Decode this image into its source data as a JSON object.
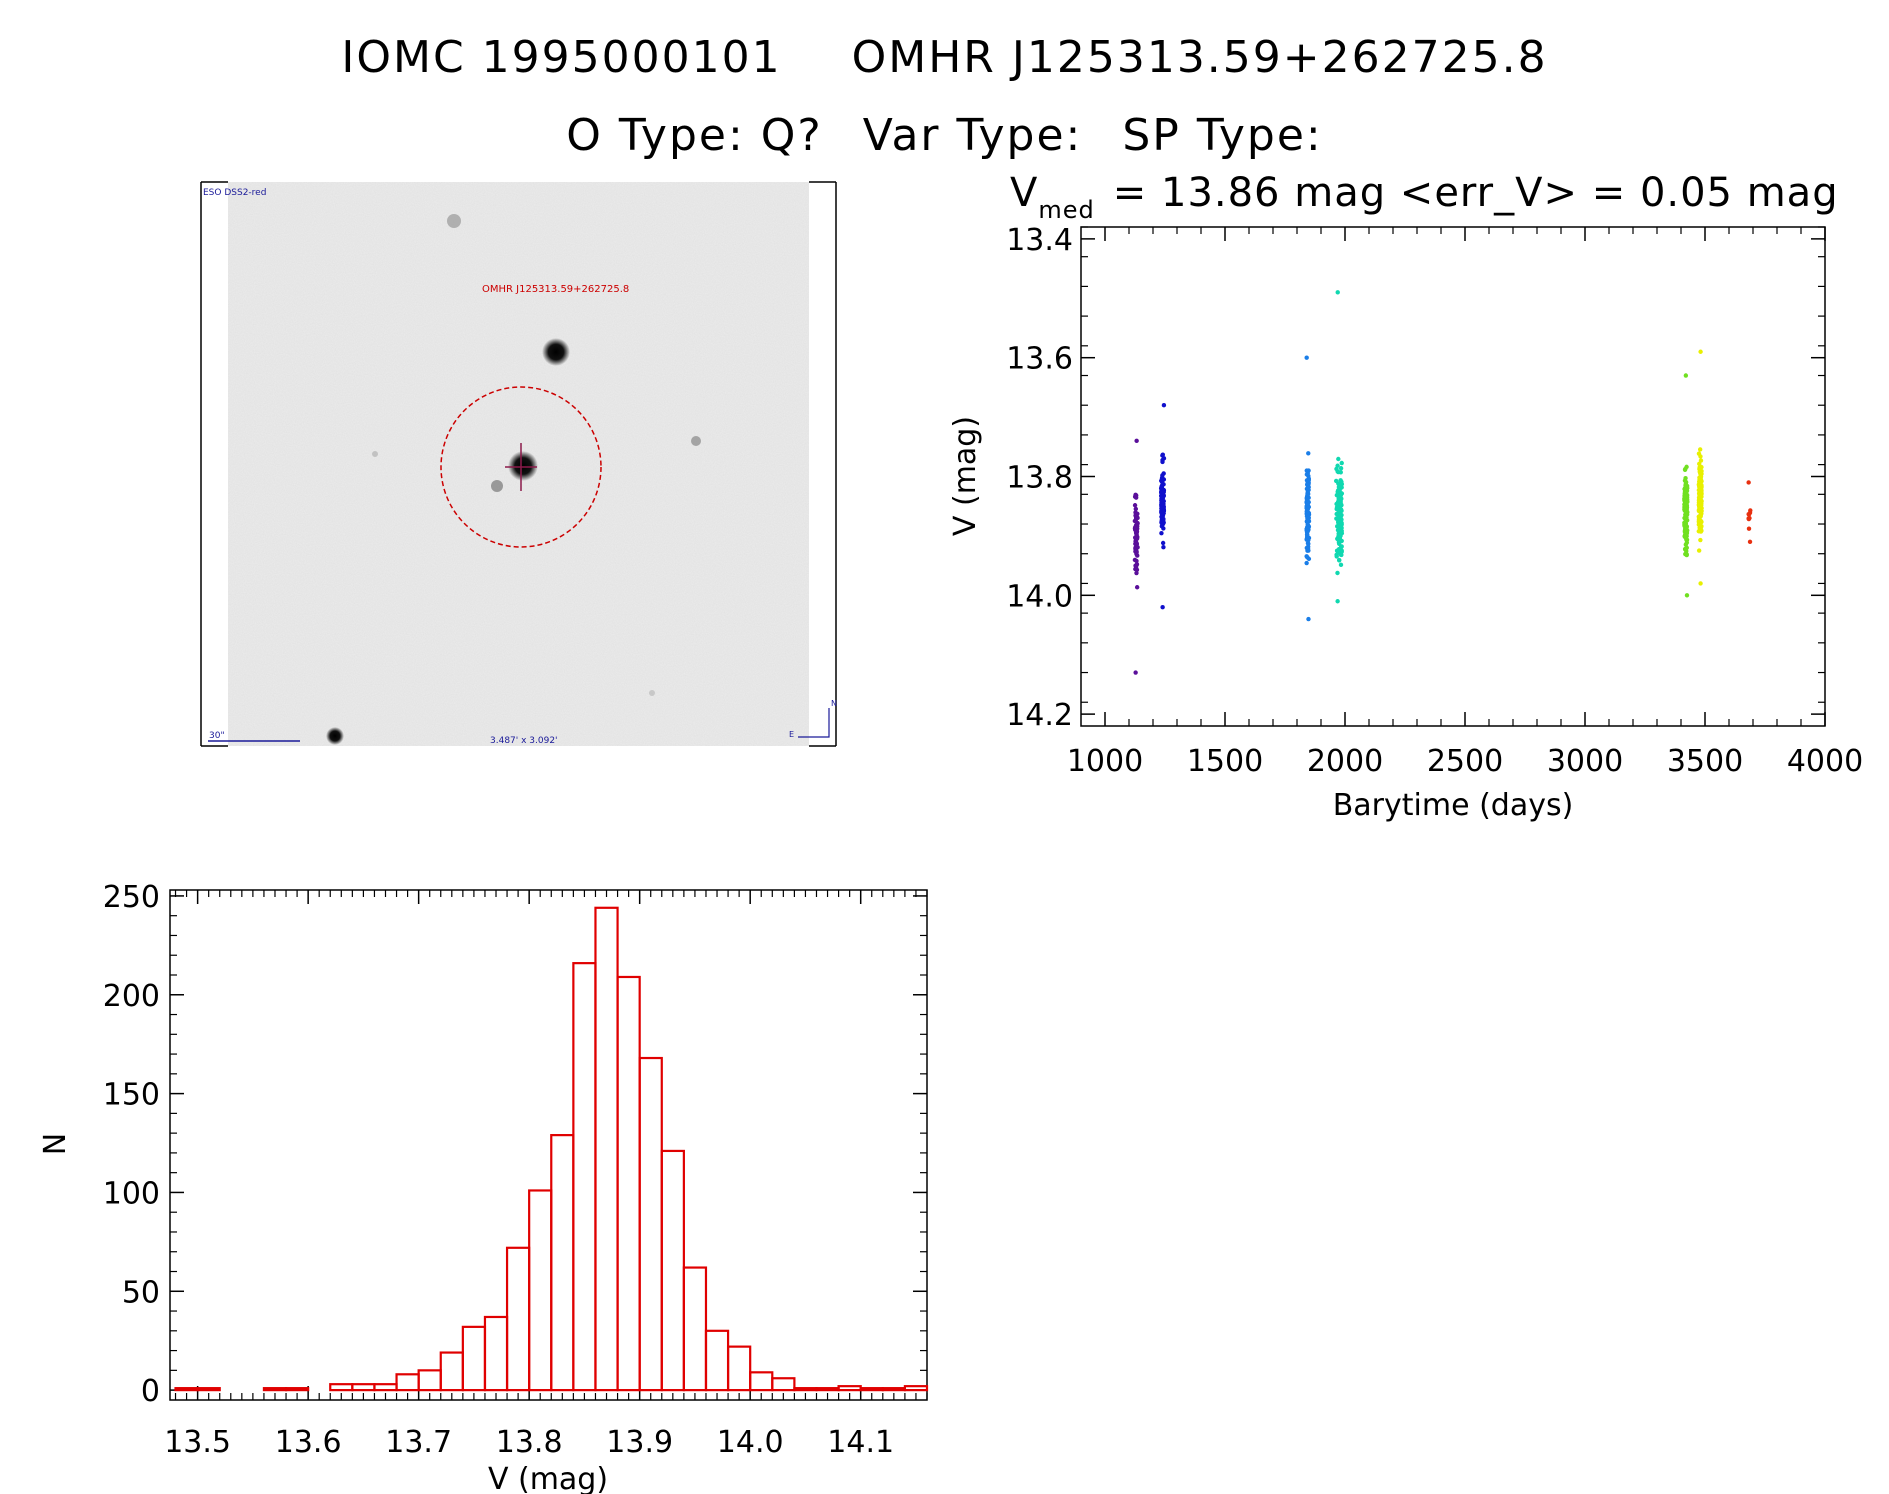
{
  "header": {
    "iomc_id": "IOMC 1995000101",
    "omhr_name": "OMHR J125313.59+262725.8",
    "otype": "O Type: Q?",
    "vartype": "Var Type:",
    "sptype": "SP Type:"
  },
  "colors": {
    "histogram": "#e00000",
    "aperture": "#cc0000",
    "overlay_blue": "#1a1a99"
  },
  "chart_data": [
    {
      "type": "image",
      "description_labels": {
        "survey": "ESO DSS2-red",
        "target": "OMHR J125313.59+262725.8",
        "scale": "30\"",
        "fov": "3.487' x 3.092'",
        "north": "N",
        "east": "E"
      }
    },
    {
      "type": "scatter",
      "title_prefix": "V",
      "title_sub": "med",
      "title_rest": "= 13.86 mag <err_V> = 0.05 mag",
      "xlabel": "Barytime (days)",
      "ylabel": "V (mag)",
      "xlim": [
        900,
        4000
      ],
      "ylim": [
        14.22,
        13.38
      ],
      "xticks": [
        1000,
        1500,
        2000,
        2500,
        3000,
        3500,
        4000
      ],
      "yticks": [
        13.4,
        13.6,
        13.8,
        14.0,
        14.2
      ],
      "clusters": [
        {
          "name": "c1",
          "x_center": 1130,
          "x_spread": 6,
          "y_center": 13.9,
          "y_min": 13.74,
          "y_max": 14.13,
          "n": 70,
          "color": "#5a0f9a"
        },
        {
          "name": "c2",
          "x_center": 1240,
          "x_spread": 6,
          "y_center": 13.84,
          "y_min": 13.68,
          "y_max": 14.02,
          "n": 110,
          "color": "#1010cc"
        },
        {
          "name": "c3",
          "x_center": 1845,
          "x_spread": 5,
          "y_center": 13.86,
          "y_min": 13.6,
          "y_max": 14.04,
          "n": 120,
          "color": "#1a7ee8"
        },
        {
          "name": "c4",
          "x_center": 1975,
          "x_spread": 12,
          "y_center": 13.86,
          "y_min": 13.49,
          "y_max": 14.01,
          "n": 130,
          "color": "#10d8b0"
        },
        {
          "name": "c5",
          "x_center": 3420,
          "x_spread": 6,
          "y_center": 13.86,
          "y_min": 13.63,
          "y_max": 14.0,
          "n": 130,
          "color": "#70e020"
        },
        {
          "name": "c6",
          "x_center": 3480,
          "x_spread": 6,
          "y_center": 13.84,
          "y_min": 13.59,
          "y_max": 13.98,
          "n": 130,
          "color": "#e8f000"
        },
        {
          "name": "c7",
          "x_center": 3685,
          "x_spread": 4,
          "y_center": 13.87,
          "y_min": 13.81,
          "y_max": 13.91,
          "n": 10,
          "color": "#e83010"
        }
      ]
    },
    {
      "type": "histogram",
      "xlabel": "V (mag)",
      "ylabel": "N",
      "xlim": [
        13.475,
        14.16
      ],
      "ylim": [
        -5,
        253
      ],
      "xticks": [
        13.5,
        13.6,
        13.7,
        13.8,
        13.9,
        14.0,
        14.1
      ],
      "yticks": [
        0,
        50,
        100,
        150,
        200,
        250
      ],
      "bin_width": 0.02,
      "bins": [
        {
          "x": 13.49,
          "n": 1
        },
        {
          "x": 13.51,
          "n": 1
        },
        {
          "x": 13.53,
          "n": 0
        },
        {
          "x": 13.55,
          "n": 0
        },
        {
          "x": 13.57,
          "n": 1
        },
        {
          "x": 13.59,
          "n": 1
        },
        {
          "x": 13.61,
          "n": 0
        },
        {
          "x": 13.63,
          "n": 3
        },
        {
          "x": 13.65,
          "n": 3
        },
        {
          "x": 13.67,
          "n": 3
        },
        {
          "x": 13.69,
          "n": 8
        },
        {
          "x": 13.71,
          "n": 10
        },
        {
          "x": 13.73,
          "n": 19
        },
        {
          "x": 13.75,
          "n": 32
        },
        {
          "x": 13.77,
          "n": 37
        },
        {
          "x": 13.79,
          "n": 72
        },
        {
          "x": 13.81,
          "n": 101
        },
        {
          "x": 13.83,
          "n": 129
        },
        {
          "x": 13.85,
          "n": 216
        },
        {
          "x": 13.87,
          "n": 244
        },
        {
          "x": 13.89,
          "n": 209
        },
        {
          "x": 13.91,
          "n": 168
        },
        {
          "x": 13.93,
          "n": 121
        },
        {
          "x": 13.95,
          "n": 62
        },
        {
          "x": 13.97,
          "n": 30
        },
        {
          "x": 13.99,
          "n": 22
        },
        {
          "x": 14.01,
          "n": 9
        },
        {
          "x": 14.03,
          "n": 6
        },
        {
          "x": 14.05,
          "n": 1
        },
        {
          "x": 14.07,
          "n": 1
        },
        {
          "x": 14.09,
          "n": 2
        },
        {
          "x": 14.11,
          "n": 1
        },
        {
          "x": 14.13,
          "n": 1
        },
        {
          "x": 14.15,
          "n": 2
        }
      ]
    }
  ]
}
